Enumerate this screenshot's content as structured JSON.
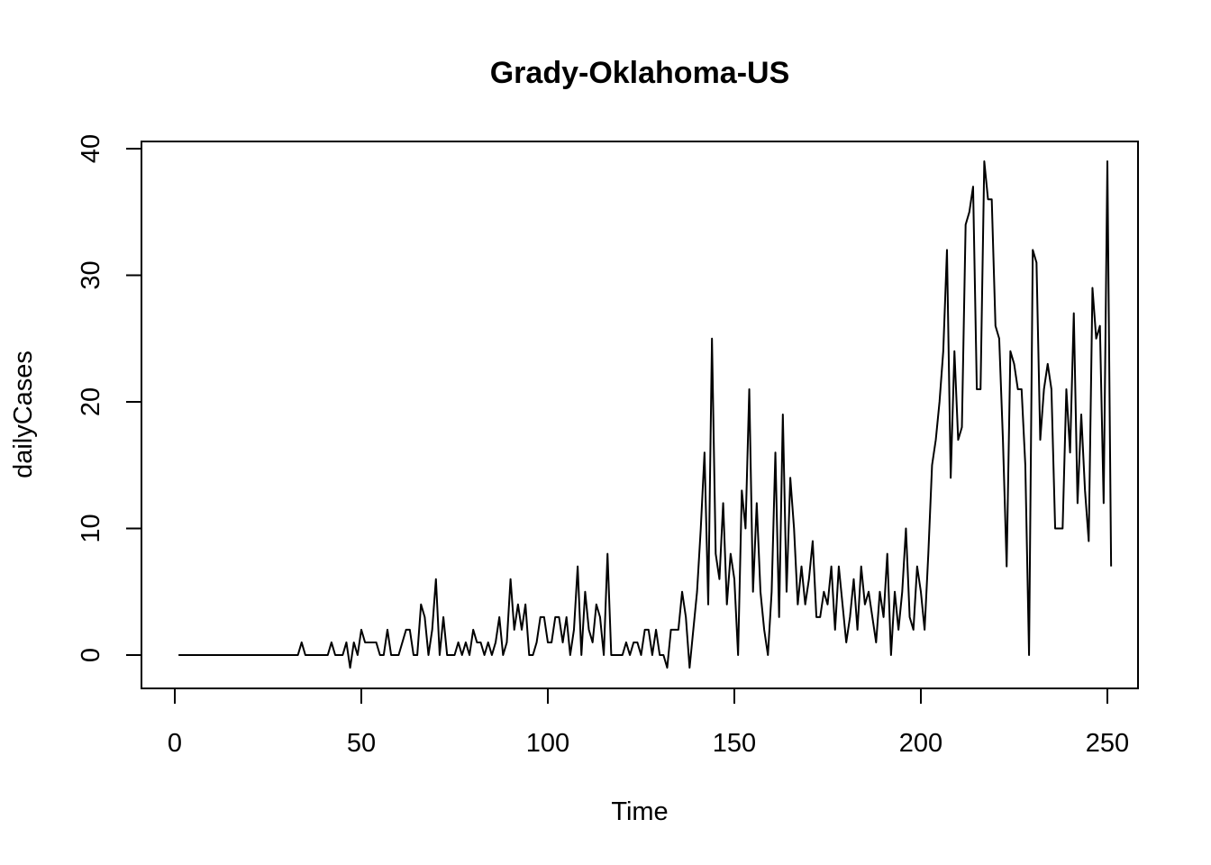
{
  "chart_data": {
    "type": "line",
    "title": "Grady-Oklahoma-US",
    "xlabel": "Time",
    "ylabel": "dailyCases",
    "xlim": [
      1,
      248
    ],
    "ylim": [
      -1,
      39
    ],
    "xticks": [
      0,
      50,
      100,
      150,
      200,
      250
    ],
    "yticks": [
      0,
      10,
      20,
      30,
      40
    ],
    "grid": false,
    "legend": "none",
    "line_color": "#000000",
    "series": [
      {
        "x_start": 1,
        "values": [
          0,
          0,
          0,
          0,
          0,
          0,
          0,
          0,
          0,
          0,
          0,
          0,
          0,
          0,
          0,
          0,
          0,
          0,
          0,
          0,
          0,
          0,
          0,
          0,
          0,
          0,
          0,
          0,
          0,
          0,
          0,
          0,
          0,
          1,
          0,
          0,
          0,
          0,
          0,
          0,
          0,
          1,
          0,
          0,
          0,
          1,
          -1,
          1,
          0,
          2,
          1,
          1,
          1,
          1,
          0,
          0,
          2,
          0,
          0,
          0,
          1,
          2,
          2,
          0,
          0,
          4,
          3,
          0,
          2,
          6,
          0,
          3,
          0,
          0,
          0,
          1,
          0,
          1,
          0,
          2,
          1,
          1,
          0,
          1,
          0,
          1,
          3,
          0,
          1,
          6,
          2,
          4,
          2,
          4,
          0,
          0,
          1,
          3,
          3,
          1,
          1,
          3,
          3,
          1,
          3,
          0,
          2,
          7,
          0,
          5,
          2,
          1,
          4,
          3,
          0,
          8,
          0,
          0,
          0,
          0,
          1,
          0,
          1,
          1,
          0,
          2,
          2,
          0,
          2,
          0,
          0,
          -1,
          2,
          2,
          2,
          5,
          3,
          -1,
          2,
          5,
          10,
          16,
          4,
          25,
          8,
          6,
          12,
          4,
          8,
          6,
          0,
          13,
          10,
          21,
          5,
          12,
          5,
          2,
          0,
          5,
          16,
          3,
          19,
          5,
          14,
          10,
          4,
          7,
          4,
          6,
          9,
          3,
          3,
          5,
          4,
          7,
          2,
          7,
          4,
          1,
          3,
          6,
          2,
          7,
          4,
          5,
          3,
          1,
          5,
          3,
          8,
          0,
          5,
          2,
          5,
          10,
          3,
          2,
          7,
          5,
          2,
          8,
          15,
          17,
          20,
          24,
          32,
          14,
          24,
          17,
          18,
          34,
          35,
          37,
          21,
          21,
          39,
          36,
          36,
          26,
          25,
          17,
          7,
          24,
          23,
          21,
          21,
          15,
          0,
          32,
          31,
          17,
          21,
          23,
          21,
          10,
          10,
          10,
          21,
          16,
          27,
          12,
          19,
          13,
          9,
          29,
          25,
          26,
          12,
          39,
          7
        ]
      }
    ]
  }
}
